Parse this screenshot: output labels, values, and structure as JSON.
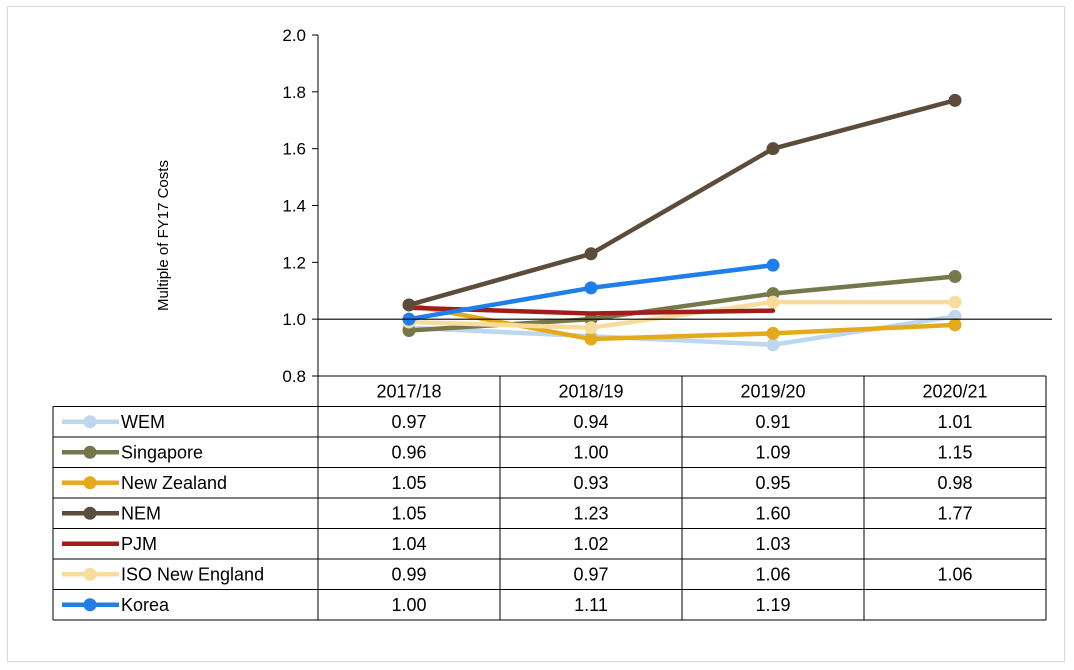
{
  "chart_data": {
    "type": "line",
    "ylabel": "Multiple of FY17 Costs",
    "ylim": [
      0.8,
      2.0
    ],
    "yticks": [
      "0.8",
      "1.0",
      "1.2",
      "1.4",
      "1.6",
      "1.8",
      "2.0"
    ],
    "categories": [
      "2017/18",
      "2018/19",
      "2019/20",
      "2020/21"
    ],
    "grid": false,
    "legend": "data-table",
    "series": [
      {
        "name": "WEM",
        "color": "#bdd7ee",
        "values": [
          0.97,
          0.94,
          0.91,
          1.01
        ],
        "labels": [
          "0.97",
          "0.94",
          "0.91",
          "1.01"
        ]
      },
      {
        "name": "Singapore",
        "color": "#76784b",
        "values": [
          0.96,
          1.0,
          1.09,
          1.15
        ],
        "labels": [
          "0.96",
          "1.00",
          "1.09",
          "1.15"
        ]
      },
      {
        "name": "New Zealand",
        "color": "#e4aa1c",
        "values": [
          1.05,
          0.93,
          0.95,
          0.98
        ],
        "labels": [
          "1.05",
          "0.93",
          "0.95",
          "0.98"
        ]
      },
      {
        "name": "NEM",
        "color": "#5b4c3c",
        "values": [
          1.05,
          1.23,
          1.6,
          1.77
        ],
        "labels": [
          "1.05",
          "1.23",
          "1.60",
          "1.77"
        ]
      },
      {
        "name": "PJM",
        "color": "#a31c1c",
        "values": [
          1.04,
          1.02,
          1.03,
          null
        ],
        "labels": [
          "1.04",
          "1.02",
          "1.03",
          ""
        ],
        "markers": false
      },
      {
        "name": "ISO New England",
        "color": "#f7dc9e",
        "values": [
          0.99,
          0.97,
          1.06,
          1.06
        ],
        "labels": [
          "0.99",
          "0.97",
          "1.06",
          "1.06"
        ]
      },
      {
        "name": "Korea",
        "color": "#1f7ee8",
        "values": [
          1.0,
          1.11,
          1.19,
          null
        ],
        "labels": [
          "1.00",
          "1.11",
          "1.19",
          ""
        ]
      }
    ]
  }
}
